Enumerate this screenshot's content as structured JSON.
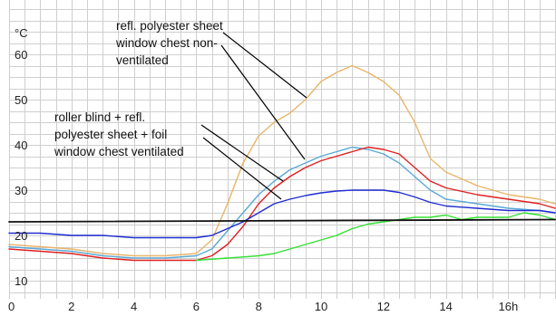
{
  "chart_data": {
    "type": "line",
    "ylabel": "°C",
    "xlim": [
      0,
      17.5
    ],
    "ylim": [
      6,
      72
    ],
    "grid": true,
    "x_ticks": [
      0,
      2,
      4,
      6,
      8,
      10,
      12,
      14,
      16
    ],
    "x_tick_labels": [
      "0",
      "2",
      "4",
      "6",
      "8",
      "10",
      "12",
      "14",
      "16h"
    ],
    "y_ticks": [
      10,
      20,
      30,
      40,
      50,
      60
    ],
    "y_tick_labels": [
      "10",
      "20",
      "30",
      "40",
      "50",
      "60"
    ],
    "annotations": [
      {
        "lines": [
          "refl. polyester sheet",
          "window chest non-",
          "ventilated"
        ]
      },
      {
        "lines": [
          "roller blind + refl.",
          "polyester sheet + foil",
          "window chest ventilated"
        ]
      }
    ],
    "series": [
      {
        "color": "#e8b56a",
        "x": [
          0,
          1,
          2,
          3,
          4,
          5,
          6,
          6.5,
          7,
          7.5,
          8,
          8.5,
          9,
          9.5,
          10,
          10.5,
          11,
          11.5,
          12,
          12.5,
          13,
          13.5,
          14,
          15,
          16,
          17,
          17.5
        ],
        "y": [
          18,
          17.5,
          17,
          16,
          15.5,
          15.5,
          16,
          19,
          27,
          36,
          42,
          45,
          47,
          50,
          54,
          56,
          57.5,
          56,
          54,
          51,
          45,
          37,
          34,
          31,
          29,
          28,
          27
        ]
      },
      {
        "color": "#5aa9d6",
        "x": [
          0,
          1,
          2,
          3,
          4,
          5,
          6,
          6.5,
          7,
          7.5,
          8,
          8.5,
          9,
          9.5,
          10,
          10.5,
          11,
          11.5,
          12,
          12.5,
          13,
          13.5,
          14,
          15,
          16,
          17,
          17.5
        ],
        "y": [
          17.5,
          17,
          16.5,
          15.5,
          15,
          15,
          15.5,
          17,
          21,
          25,
          29,
          32,
          34.5,
          36,
          37.5,
          38.5,
          39.5,
          39,
          38,
          36,
          33,
          30,
          28,
          27,
          26,
          25.5,
          25
        ]
      },
      {
        "color": "#e02020",
        "x": [
          0,
          1,
          2,
          3,
          4,
          5,
          6,
          6.5,
          7,
          7.5,
          8,
          8.5,
          9,
          9.5,
          10,
          10.5,
          11,
          11.5,
          12,
          12.5,
          13,
          13.5,
          14,
          15,
          16,
          17,
          17.5
        ],
        "y": [
          17,
          16.5,
          16,
          15,
          14.5,
          14.5,
          14.5,
          15.5,
          18,
          22,
          27,
          30.5,
          33,
          35,
          36.5,
          37.5,
          38.5,
          39.5,
          39,
          38,
          35,
          32,
          30.5,
          29,
          28,
          27,
          26
        ]
      },
      {
        "color": "#1f2ccf",
        "x": [
          0,
          1,
          2,
          3,
          4,
          5,
          6,
          6.5,
          7,
          7.5,
          8,
          8.5,
          9,
          9.5,
          10,
          10.5,
          11,
          11.5,
          12,
          12.5,
          13,
          13.5,
          14,
          15,
          16,
          17,
          17.5
        ],
        "y": [
          20.5,
          20.5,
          20,
          20,
          19.5,
          19.5,
          19.5,
          20,
          21.5,
          23,
          25,
          27,
          28,
          28.8,
          29.4,
          29.8,
          30,
          30,
          30,
          29.5,
          28.5,
          27.3,
          26.5,
          26,
          25.5,
          25.5,
          25
        ]
      },
      {
        "color": "#33e033",
        "x": [
          6,
          7,
          8,
          8.5,
          9,
          9.5,
          10,
          10.5,
          11,
          11.5,
          12,
          12.5,
          13,
          13.5,
          14,
          14.5,
          15,
          15.5,
          16,
          16.5,
          17,
          17.5
        ],
        "y": [
          14.5,
          15,
          15.5,
          16,
          17,
          18,
          19,
          20,
          21.5,
          22.5,
          23,
          23.5,
          24,
          24,
          24.5,
          23.5,
          24,
          24,
          24,
          25,
          24.5,
          23.5
        ]
      },
      {
        "color": "#111111",
        "x": [
          0,
          17.5
        ],
        "y": [
          23,
          23.5
        ]
      }
    ]
  }
}
